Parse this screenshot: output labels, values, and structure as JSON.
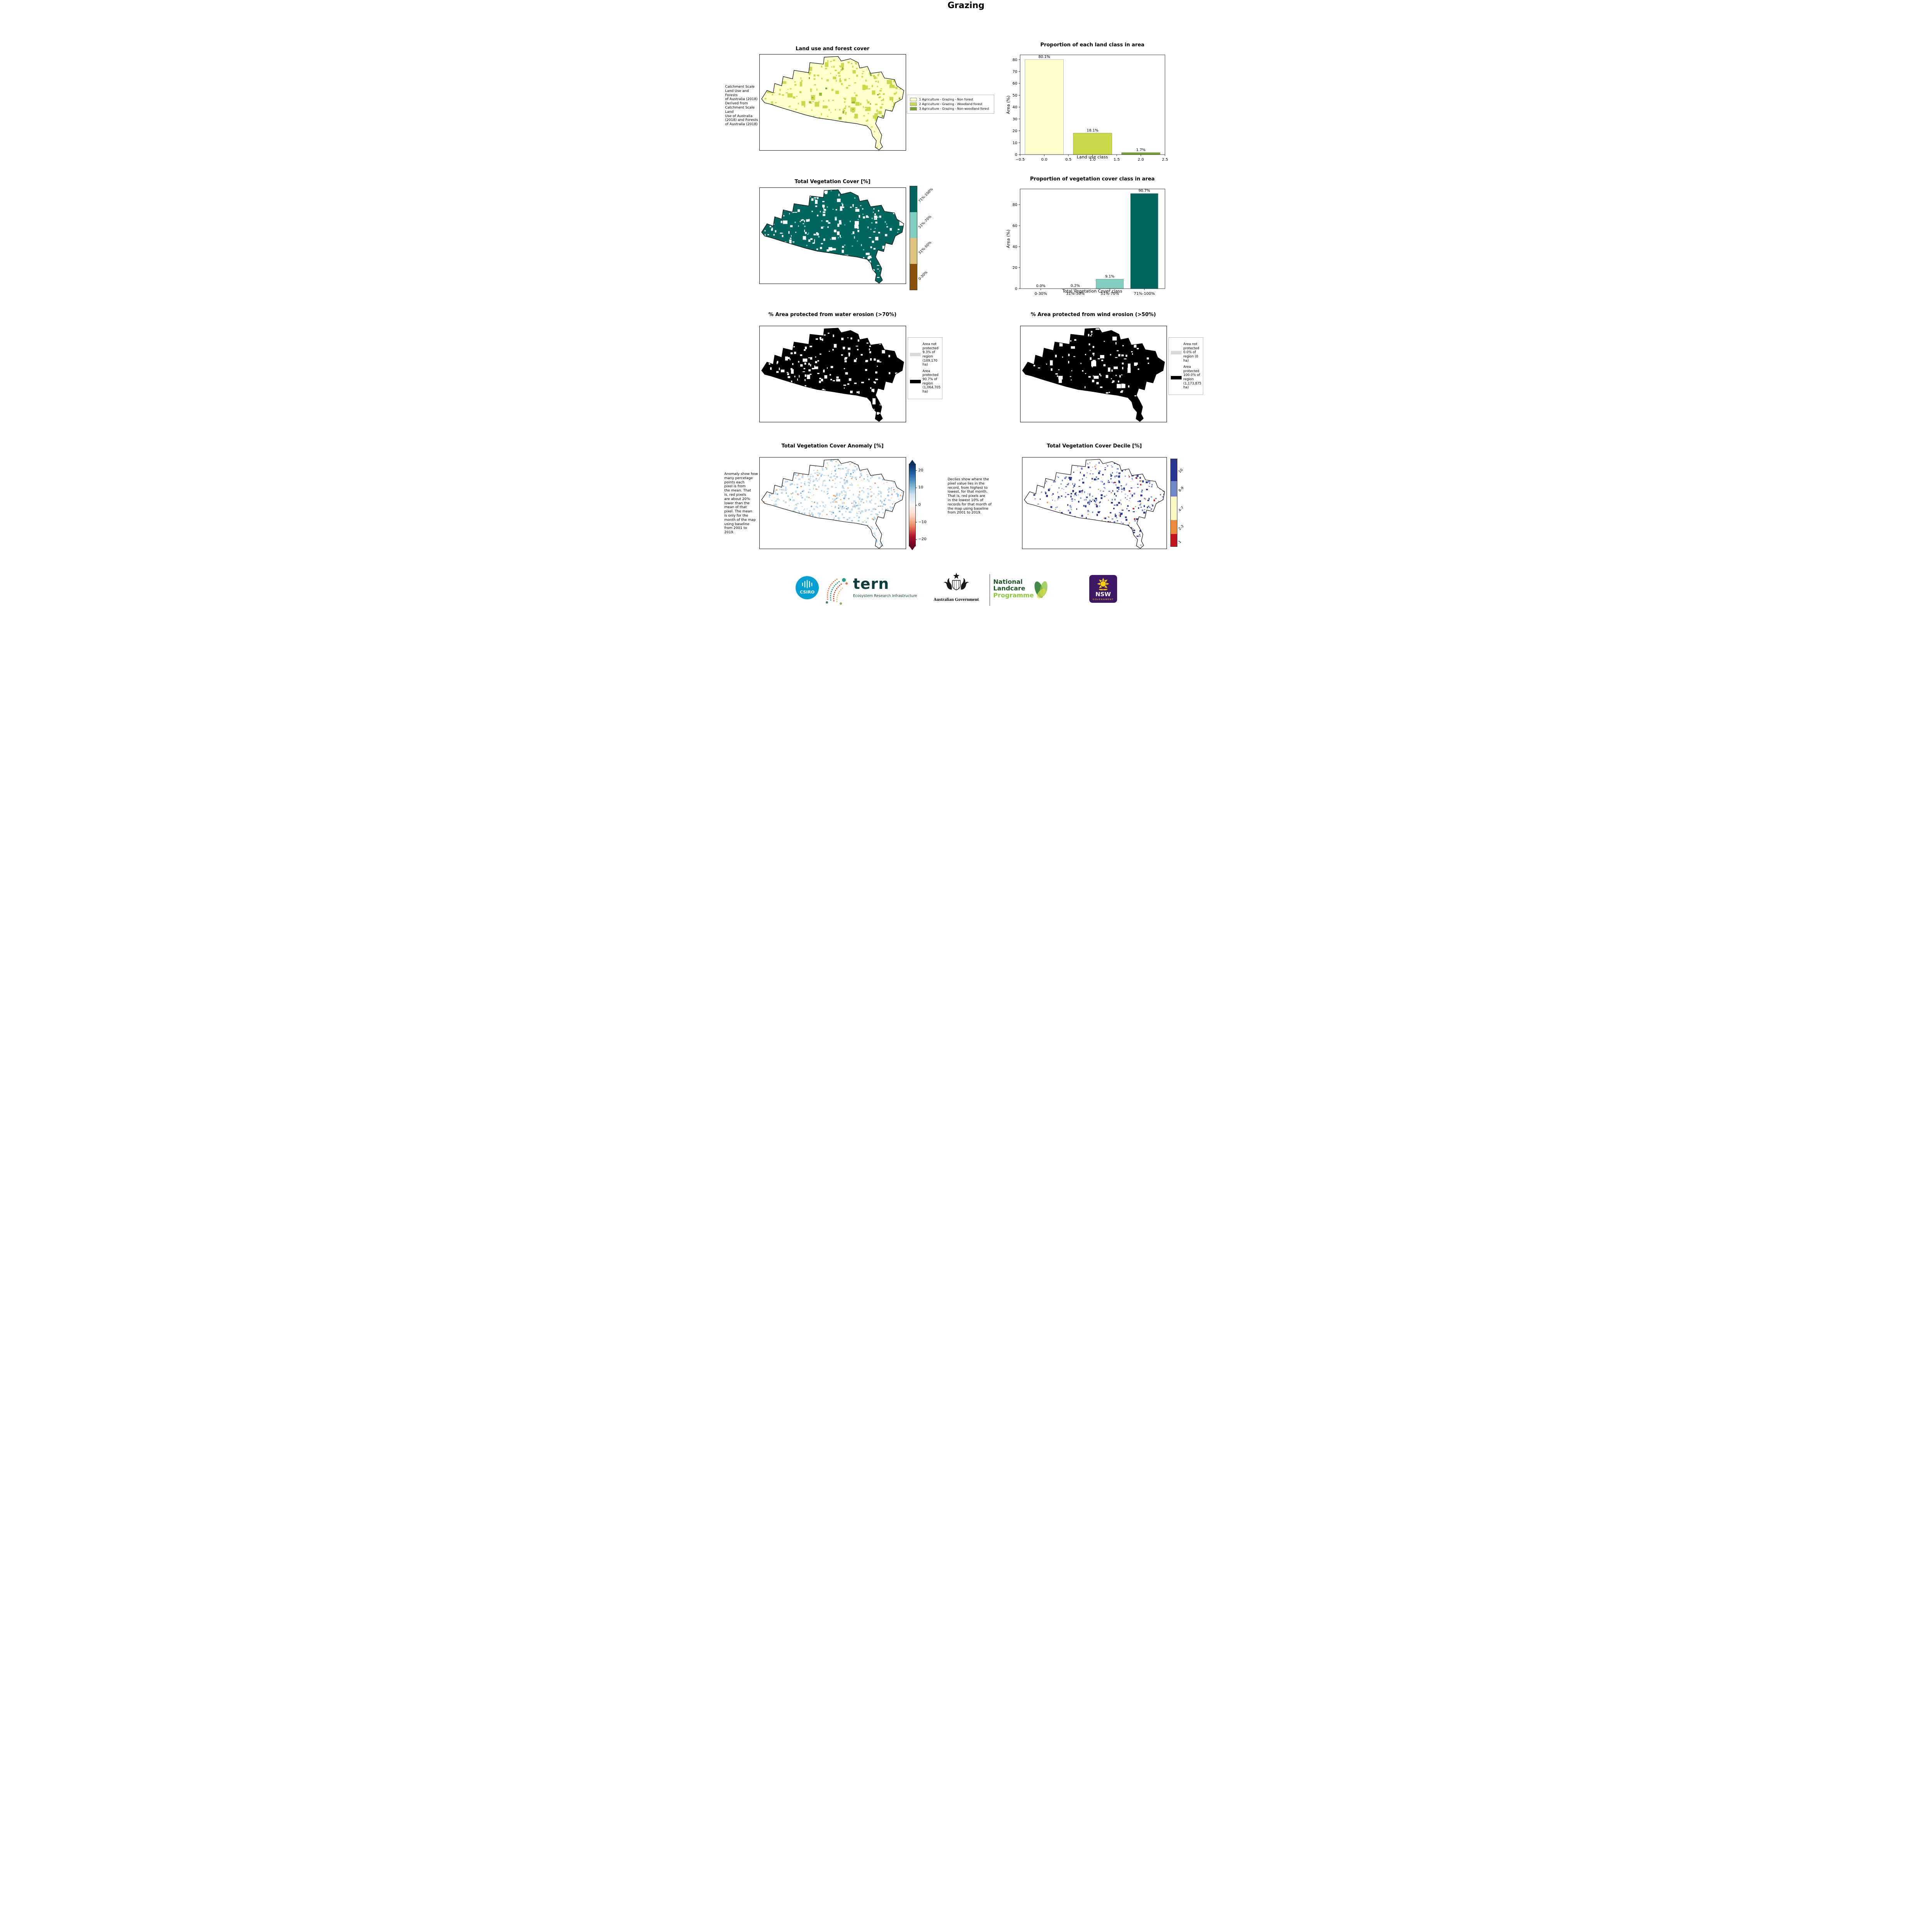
{
  "page": {
    "title": "Grazing"
  },
  "land_use": {
    "map_title": "Land use and forest cover",
    "source_note": " Catchment Scale\nLand Use and Forests\nof Australia (2018)\nDerived from\nCatchment Scale Land\nUse of Australia\n(2018) and Forests\nof Australia (2018)",
    "legend_items": [
      {
        "label": "1 Agriculture - Grazing - Non forest",
        "color": "#ffffcc"
      },
      {
        "label": "2 Agriculture - Grazing - Woodland forest",
        "color": "#c9d948"
      },
      {
        "label": "3 Agriculture - Grazing - Non-woodland forest",
        "color": "#76a32a"
      }
    ]
  },
  "veg_cover": {
    "map_title": "Total Vegetation Cover [%]",
    "colorbar": [
      {
        "label": "71%-100%",
        "color": "#01665e"
      },
      {
        "label": "51%-70%",
        "color": "#80cdc1"
      },
      {
        "label": "31%-50%",
        "color": "#dfc27d"
      },
      {
        "label": "0-30%",
        "color": "#8c510a"
      }
    ]
  },
  "water_erosion": {
    "map_title": "% Area protected from water erosion (>70%)",
    "legend": [
      {
        "label": "Area not\nprotected\n9.3% of\nregion\n(109,170\nha)",
        "color": "#d9d9d9"
      },
      {
        "label": "Area\nprotected\n90.7% of\nregion\n(1,064,705\nha)",
        "color": "#000000"
      }
    ]
  },
  "wind_erosion": {
    "map_title": "% Area protected from wind erosion (>50%)",
    "legend": [
      {
        "label": "Area not\nprotected\n0.0% of\nregion (0\nha)",
        "color": "#d9d9d9"
      },
      {
        "label": "Area\nprotected\n100.0% of\nregion\n(1,173,875\nha)",
        "color": "#000000"
      }
    ]
  },
  "anomaly": {
    "map_title": "Total Vegetation Cover Anomaly [%]",
    "note": "Anomaly show how\nmany percetage\npoints each\npixel is from\nthe mean. That\nis, red pixels\nare about 20%\nlower than the\nmean of that\npixel. The mean\nis only for the\nmonth of the map\nusing baseline\nfrom 2001 to\n2019.",
    "colorbar_ticks": [
      "20",
      "10",
      "0",
      "−10",
      "−20"
    ],
    "colorbar_colors": [
      "#053061",
      "#2166ac",
      "#6bacd1",
      "#cfe3f0",
      "#f7f7f7",
      "#fbd7c4",
      "#ef8a62",
      "#b2182b",
      "#67001f"
    ]
  },
  "decile": {
    "map_title": "Total Vegetation Cover Decile [%]",
    "note": "Deciles show where the\npixel value lies in the\nrecord, from highest to\nlowest, for that month.\nThat is, red pixels are\nin the lowest 10% of\nrecords for that month of\nthe map using baseline\nfrom 2001 to 2019.",
    "colorbar": [
      {
        "label": "10",
        "color": "#283593",
        "frac": 0.25
      },
      {
        "label": "8-9",
        "color": "#7286c7",
        "frac": 0.18
      },
      {
        "label": "4-7",
        "color": "#fdf8c4",
        "frac": 0.27
      },
      {
        "label": "2-3",
        "color": "#ef8a3c",
        "frac": 0.16
      },
      {
        "label": "1",
        "color": "#c3151c",
        "frac": 0.14
      }
    ]
  },
  "chart_data": [
    {
      "type": "bar",
      "title": "Proportion of each land class in area",
      "xlabel": "Land use class",
      "ylabel": "Area (%)",
      "x": [
        0,
        1,
        2
      ],
      "values": [
        80.1,
        18.1,
        1.7
      ],
      "value_labels": [
        "80.1%",
        "18.1%",
        "1.7%"
      ],
      "bar_colors": [
        "#ffffcc",
        "#c9d948",
        "#76a32a"
      ],
      "bar_width": 0.8,
      "xlim": [
        -0.5,
        2.5
      ],
      "ylim": [
        0,
        84
      ],
      "xticks": [
        -0.5,
        0.0,
        0.5,
        1.0,
        1.5,
        2.0,
        2.5
      ],
      "xtick_labels": [
        "−0.5",
        "0.0",
        "0.5",
        "1.0",
        "1.5",
        "2.0",
        "2.5"
      ],
      "yticks": [
        0,
        10,
        20,
        30,
        40,
        50,
        60,
        70,
        80
      ]
    },
    {
      "type": "bar",
      "title": "Proportion of vegetation cover class in area",
      "xlabel": "Total Vegetation Cover class",
      "ylabel": "Area (%)",
      "categories": [
        "0-30%",
        "31%-50%",
        "51%-70%",
        "71%-100%"
      ],
      "x": [
        0,
        1,
        2,
        3
      ],
      "values": [
        0.0,
        0.2,
        9.1,
        90.7
      ],
      "value_labels": [
        "0.0%",
        "0.2%",
        "9.1%",
        "90.7%"
      ],
      "bar_colors": [
        "#8c510a",
        "#dfc27d",
        "#80cdc1",
        "#01665e"
      ],
      "bar_width": 0.8,
      "xlim": [
        -0.6,
        3.6
      ],
      "ylim": [
        0,
        95
      ],
      "xticks": [
        0,
        1,
        2,
        3
      ],
      "xtick_labels": [
        "0-30%",
        "31%-50%",
        "51%-70%",
        "71%-100%"
      ],
      "yticks": [
        0,
        20,
        40,
        60,
        80
      ]
    }
  ],
  "footer": {
    "csiro_label": "CSIRO",
    "tern_label": "tern",
    "tern_sub": "Ecosystem Research Infrastructure",
    "aus_gov": "Australian Government",
    "landcare_line1": "National",
    "landcare_line2": "Landcare",
    "landcare_line3": "Programme",
    "nsw_label": "NSW",
    "nsw_sub": "GOVERNMENT"
  }
}
